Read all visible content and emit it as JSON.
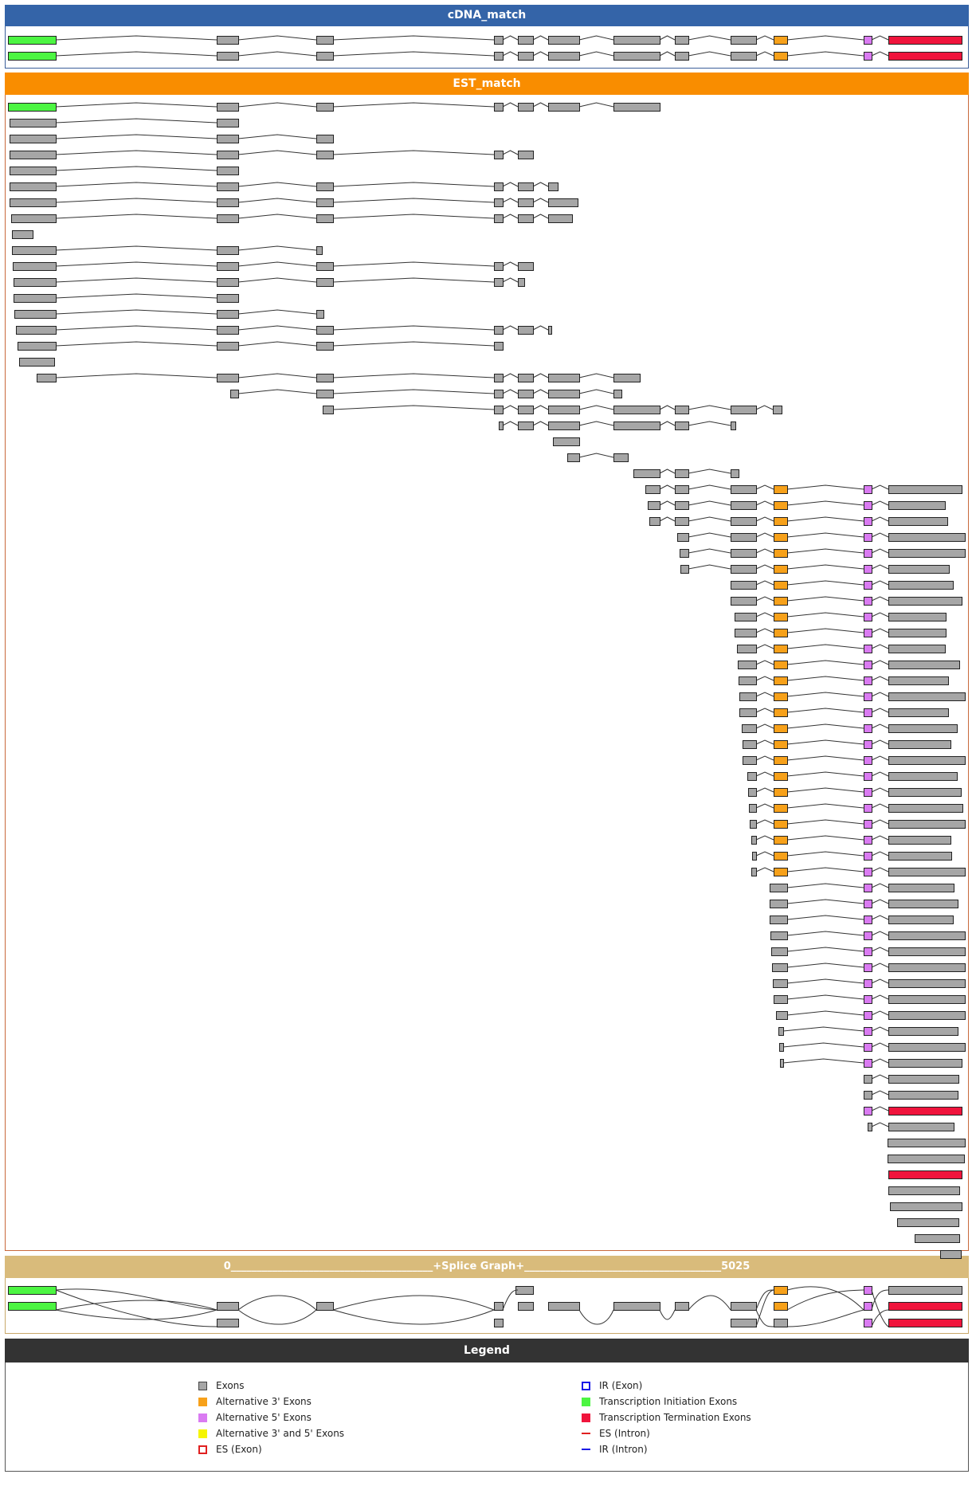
{
  "panels": {
    "cdna": {
      "title": "cDNA_match",
      "header_color": "#3464a8",
      "border_color": "#3b5e9a"
    },
    "est": {
      "title": "EST_match",
      "header_color": "#f98d00",
      "border_color": "#c8693c"
    },
    "splice": {
      "title": "0_______________________________________+Splice Graph+______________________________________5025",
      "header_color": "#d9bb7b",
      "border_color": "#c9a86a"
    },
    "legend": {
      "title": "Legend",
      "header_color": "#333333"
    }
  },
  "colors": {
    "exon": "#a6a6a6",
    "alt3": "#f7a11a",
    "alt5": "#da7bf2",
    "alt35": "#f5f500",
    "tss": "#4cf542",
    "tes": "#f0143c",
    "ir": "#1a1ae6",
    "es": "#e02020"
  },
  "legend": {
    "left": [
      {
        "label": "Exons",
        "type": "exon"
      },
      {
        "label": "Alternative 3' Exons",
        "type": "alt3"
      },
      {
        "label": "Alternative 5' Exons",
        "type": "alt5"
      },
      {
        "label": "Alternative 3' and 5' Exons",
        "type": "alt35"
      },
      {
        "label": "ES (Exon)",
        "type": "es_exon"
      }
    ],
    "right": [
      {
        "label": "IR (Exon)",
        "type": "ir_exon"
      },
      {
        "label": "Transcription Initiation Exons",
        "type": "tss"
      },
      {
        "label": "Transcription Termination Exons",
        "type": "tes"
      },
      {
        "label": "ES (Intron)",
        "type": "es_intron"
      },
      {
        "label": "IR (Intron)",
        "type": "ir_intron"
      }
    ]
  },
  "exon_catalog": {
    "e1": [
      10,
      70,
      "tss"
    ],
    "e2": [
      272,
      299,
      "exon"
    ],
    "e3": [
      397,
      418,
      "exon"
    ],
    "e4": [
      620,
      631,
      "exon"
    ],
    "e5": [
      650,
      669,
      "exon"
    ],
    "e6": [
      688,
      727,
      "exon"
    ],
    "e7": [
      770,
      828,
      "exon"
    ],
    "e8": [
      847,
      864,
      "exon"
    ],
    "e9": [
      917,
      949,
      "exon"
    ],
    "e10": [
      971,
      988,
      "alt3"
    ],
    "e11": [
      1084,
      1094,
      "alt5"
    ],
    "e12": [
      1115,
      1207,
      "tes"
    ]
  },
  "cdna_tracks": [
    [
      "e1",
      "e2",
      "e3",
      "e4",
      "e5",
      "e6",
      "e7",
      "e8",
      "e9",
      "e10",
      "e11",
      "e12"
    ],
    [
      "e1",
      "e2",
      "e3",
      "e4",
      "e5",
      "e6",
      "e7",
      "e8",
      "e9",
      "e10",
      "e11",
      "e12"
    ]
  ],
  "est_tracks": [
    [
      "e1",
      "e2",
      "e3",
      "e4",
      "e5",
      "e6",
      "e7"
    ],
    [
      [
        12,
        70,
        "exon"
      ],
      "e2"
    ],
    [
      [
        12,
        70,
        "exon"
      ],
      "e2",
      "e3"
    ],
    [
      [
        12,
        70,
        "exon"
      ],
      "e2",
      "e3",
      "e4",
      [
        650,
        669,
        "exon"
      ]
    ],
    [
      [
        12,
        70,
        "exon"
      ],
      "e2"
    ],
    [
      [
        12,
        70,
        "exon"
      ],
      "e2",
      "e3",
      "e4",
      "e5",
      [
        688,
        700,
        "exon"
      ]
    ],
    [
      [
        12,
        70,
        "exon"
      ],
      "e2",
      "e3",
      "e4",
      "e5",
      [
        688,
        725,
        "exon"
      ]
    ],
    [
      [
        14,
        70,
        "exon"
      ],
      "e2",
      "e3",
      "e4",
      "e5",
      [
        688,
        718,
        "exon"
      ]
    ],
    [
      [
        15,
        41,
        "exon"
      ]
    ],
    [
      [
        15,
        70,
        "exon"
      ],
      "e2",
      [
        397,
        404,
        "exon"
      ]
    ],
    [
      [
        16,
        70,
        "exon"
      ],
      "e2",
      "e3",
      "e4",
      [
        650,
        669,
        "exon"
      ]
    ],
    [
      [
        17,
        70,
        "exon"
      ],
      "e2",
      "e3",
      "e4",
      [
        650,
        658,
        "exon"
      ]
    ],
    [
      [
        17,
        70,
        "exon"
      ],
      "e2"
    ],
    [
      [
        18,
        70,
        "exon"
      ],
      "e2",
      [
        397,
        406,
        "exon"
      ]
    ],
    [
      [
        20,
        70,
        "exon"
      ],
      "e2",
      "e3",
      "e4",
      "e5",
      [
        688,
        692,
        "exon"
      ]
    ],
    [
      [
        22,
        70,
        "exon"
      ],
      "e2",
      "e3",
      [
        620,
        631,
        "exon"
      ]
    ],
    [
      [
        24,
        68,
        "exon"
      ]
    ],
    [
      [
        46,
        70,
        "exon"
      ],
      "e2",
      "e3",
      "e4",
      "e5",
      "e6",
      [
        770,
        803,
        "exon"
      ]
    ],
    [
      [
        289,
        299,
        "exon"
      ],
      "e3",
      "e4",
      "e5",
      "e6",
      [
        770,
        780,
        "exon"
      ]
    ],
    [
      [
        405,
        418,
        "exon"
      ],
      "e4",
      "e5",
      "e6",
      "e7",
      "e8",
      "e9",
      [
        970,
        981,
        "exon"
      ]
    ],
    [
      [
        626,
        631,
        "exon"
      ],
      "e5",
      "e6",
      "e7",
      "e8",
      [
        917,
        923,
        "exon"
      ]
    ],
    [
      [
        694,
        727,
        "exon"
      ]
    ],
    [
      [
        712,
        727,
        "exon"
      ],
      [
        770,
        788,
        "exon"
      ]
    ],
    [
      [
        795,
        828,
        "exon"
      ],
      "e8",
      [
        917,
        927,
        "exon"
      ]
    ],
    [
      [
        810,
        828,
        "exon"
      ],
      "e8",
      "e9",
      "e10",
      "e11",
      [
        1115,
        1207,
        "exon"
      ]
    ],
    [
      [
        813,
        828,
        "exon"
      ],
      "e8",
      "e9",
      "e10",
      "e11",
      [
        1115,
        1186,
        "exon"
      ]
    ],
    [
      [
        815,
        828,
        "exon"
      ],
      "e8",
      "e9",
      "e10",
      "e11",
      [
        1115,
        1189,
        "exon"
      ]
    ],
    [
      [
        850,
        864,
        "exon"
      ],
      "e9",
      "e10",
      "e11",
      [
        1115,
        1211,
        "exon"
      ]
    ],
    [
      [
        853,
        864,
        "exon"
      ],
      "e9",
      "e10",
      "e11",
      [
        1115,
        1211,
        "exon"
      ]
    ],
    [
      [
        854,
        864,
        "exon"
      ],
      "e9",
      "e10",
      "e11",
      [
        1115,
        1191,
        "exon"
      ]
    ],
    [
      [
        917,
        949,
        "exon"
      ],
      "e10",
      "e11",
      [
        1115,
        1196,
        "exon"
      ]
    ],
    [
      [
        917,
        949,
        "exon"
      ],
      "e10",
      "e11",
      [
        1115,
        1207,
        "exon"
      ]
    ],
    [
      [
        922,
        949,
        "exon"
      ],
      "e10",
      "e11",
      [
        1115,
        1187,
        "exon"
      ]
    ],
    [
      [
        922,
        949,
        "exon"
      ],
      "e10",
      "e11",
      [
        1115,
        1187,
        "exon"
      ]
    ],
    [
      [
        925,
        949,
        "exon"
      ],
      "e10",
      "e11",
      [
        1115,
        1186,
        "exon"
      ]
    ],
    [
      [
        926,
        949,
        "exon"
      ],
      "e10",
      "e11",
      [
        1115,
        1204,
        "exon"
      ]
    ],
    [
      [
        927,
        949,
        "exon"
      ],
      "e10",
      "e11",
      [
        1115,
        1190,
        "exon"
      ]
    ],
    [
      [
        928,
        949,
        "exon"
      ],
      "e10",
      "e11",
      [
        1115,
        1211,
        "exon"
      ]
    ],
    [
      [
        928,
        949,
        "exon"
      ],
      "e10",
      "e11",
      [
        1115,
        1190,
        "exon"
      ]
    ],
    [
      [
        931,
        949,
        "exon"
      ],
      "e10",
      "e11",
      [
        1115,
        1201,
        "exon"
      ]
    ],
    [
      [
        932,
        949,
        "exon"
      ],
      "e10",
      "e11",
      [
        1115,
        1193,
        "exon"
      ]
    ],
    [
      [
        932,
        949,
        "exon"
      ],
      "e10",
      "e11",
      [
        1115,
        1211,
        "exon"
      ]
    ],
    [
      [
        938,
        949,
        "exon"
      ],
      "e10",
      "e11",
      [
        1115,
        1201,
        "exon"
      ]
    ],
    [
      [
        939,
        949,
        "exon"
      ],
      "e10",
      "e11",
      [
        1115,
        1206,
        "exon"
      ]
    ],
    [
      [
        940,
        949,
        "exon"
      ],
      "e10",
      "e11",
      [
        1115,
        1208,
        "exon"
      ]
    ],
    [
      [
        941,
        949,
        "exon"
      ],
      "e10",
      "e11",
      [
        1115,
        1211,
        "exon"
      ]
    ],
    [
      [
        943,
        949,
        "exon"
      ],
      "e10",
      "e11",
      [
        1115,
        1193,
        "exon"
      ]
    ],
    [
      [
        944,
        949,
        "exon"
      ],
      "e10",
      "e11",
      [
        1115,
        1194,
        "exon"
      ]
    ],
    [
      [
        943,
        949,
        "exon"
      ],
      "e10",
      "e11",
      [
        1115,
        1211,
        "exon"
      ]
    ],
    [
      [
        966,
        988,
        "exon"
      ],
      "e11",
      [
        1115,
        1197,
        "exon"
      ]
    ],
    [
      [
        966,
        988,
        "exon"
      ],
      "e11",
      [
        1115,
        1202,
        "exon"
      ]
    ],
    [
      [
        966,
        988,
        "exon"
      ],
      "e11",
      [
        1115,
        1196,
        "exon"
      ]
    ],
    [
      [
        967,
        988,
        "exon"
      ],
      "e11",
      [
        1115,
        1211,
        "exon"
      ]
    ],
    [
      [
        968,
        988,
        "exon"
      ],
      "e11",
      [
        1115,
        1211,
        "exon"
      ]
    ],
    [
      [
        969,
        988,
        "exon"
      ],
      "e11",
      [
        1115,
        1211,
        "exon"
      ]
    ],
    [
      [
        970,
        988,
        "exon"
      ],
      "e11",
      [
        1115,
        1211,
        "exon"
      ]
    ],
    [
      [
        971,
        988,
        "exon"
      ],
      "e11",
      [
        1115,
        1211,
        "exon"
      ]
    ],
    [
      [
        974,
        988,
        "exon"
      ],
      "e11",
      [
        1115,
        1211,
        "exon"
      ]
    ],
    [
      [
        977,
        983,
        "exon"
      ],
      "e11",
      [
        1115,
        1202,
        "exon"
      ]
    ],
    [
      [
        978,
        983,
        "exon"
      ],
      "e11",
      [
        1115,
        1211,
        "exon"
      ]
    ],
    [
      [
        979,
        983,
        "exon"
      ],
      "e11",
      [
        1115,
        1207,
        "exon"
      ]
    ],
    [
      [
        1084,
        1094,
        "exon"
      ],
      [
        1115,
        1203,
        "exon"
      ]
    ],
    [
      [
        1084,
        1094,
        "exon"
      ],
      [
        1115,
        1202,
        "exon"
      ]
    ],
    [
      [
        1084,
        1094,
        "alt5"
      ],
      [
        1115,
        1207,
        "tes"
      ]
    ],
    [
      [
        1089,
        1094,
        "exon"
      ],
      [
        1115,
        1197,
        "exon"
      ]
    ],
    [
      [
        1114,
        1211,
        "exon"
      ]
    ],
    [
      [
        1114,
        1210,
        "exon"
      ]
    ],
    [
      [
        1115,
        1207,
        "tes"
      ]
    ],
    [
      [
        1115,
        1204,
        "exon"
      ]
    ],
    [
      [
        1117,
        1207,
        "exon"
      ]
    ],
    [
      [
        1126,
        1203,
        "exon"
      ]
    ],
    [
      [
        1148,
        1204,
        "exon"
      ]
    ],
    [
      [
        1180,
        1206,
        "exon"
      ]
    ]
  ],
  "splice_rows": [
    [
      [
        "e1"
      ],
      [
        647,
        669,
        "exon"
      ],
      [
        971,
        988,
        "alt3"
      ],
      [
        1084,
        1094,
        "alt5"
      ],
      [
        1115,
        1207,
        "exon"
      ]
    ],
    [
      [
        "e1"
      ],
      [
        "e2"
      ],
      [
        "e3"
      ],
      [
        "e4"
      ],
      [
        "e5"
      ],
      [
        "e6"
      ],
      [
        "e7"
      ],
      [
        "e8"
      ],
      [
        917,
        949,
        "exon"
      ],
      [
        "e10"
      ],
      [
        "e11"
      ],
      [
        "e12"
      ]
    ],
    [
      [
        272,
        299,
        "exon"
      ],
      [
        620,
        631,
        "exon"
      ],
      [
        917,
        949,
        "exon"
      ],
      [
        971,
        988,
        "exon"
      ],
      [
        1084,
        1094,
        "alt5"
      ],
      [
        "e12"
      ]
    ]
  ]
}
